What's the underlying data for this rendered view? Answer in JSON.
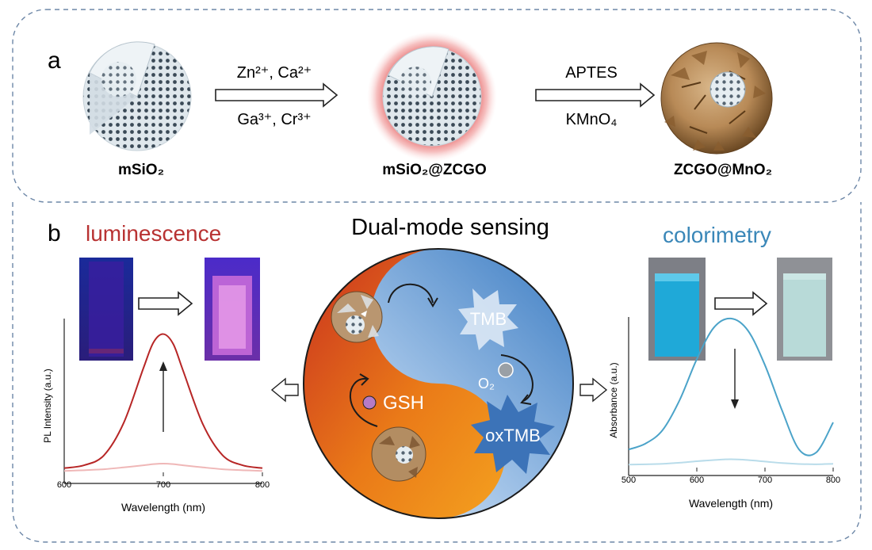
{
  "panel_a": {
    "label": "a",
    "step1_reagents_top": "Zn²⁺, Ca²⁺",
    "step1_reagents_bottom": "Ga³⁺, Cr³⁺",
    "step2_reagents_top": "APTES",
    "step2_reagents_bottom": "KMnO₄",
    "caption_1": "mSiO₂",
    "caption_2": "mSiO₂@ZCGO",
    "caption_3": "ZCGO@MnO₂"
  },
  "panel_b": {
    "label": "b",
    "luminescence_title": "luminescence",
    "center_title": "Dual-mode sensing",
    "colorimetry_title": "colorimetry",
    "tmb_label": "TMB",
    "o2_label": "O₂",
    "gsh_label": "GSH",
    "oxtmb_label": "oxTMB"
  },
  "colors": {
    "luminescence": "#b83232",
    "colorimetry": "#3a87b8",
    "frame_dash": "#6d87a7",
    "pl_high": "#b72626",
    "pl_low": "#efb7b7",
    "abs_high": "#4ba3c9",
    "abs_low": "#b9dcea"
  },
  "chart_data": [
    {
      "type": "line",
      "xlabel": "Wavelength (nm)",
      "ylabel": "PL Intensity (a.u.)",
      "xlim": [
        600,
        800
      ],
      "x_ticks": [
        600,
        700,
        800
      ],
      "series": [
        {
          "x": [
            600,
            620,
            640,
            660,
            680,
            690,
            700,
            710,
            720,
            740,
            760,
            780,
            800
          ],
          "y": [
            0.03,
            0.05,
            0.12,
            0.35,
            0.74,
            0.92,
            0.98,
            0.91,
            0.72,
            0.34,
            0.12,
            0.05,
            0.03
          ]
        },
        {
          "x": [
            600,
            620,
            640,
            660,
            680,
            690,
            700,
            710,
            720,
            740,
            760,
            780,
            800
          ],
          "y": [
            0.01,
            0.015,
            0.022,
            0.035,
            0.05,
            0.058,
            0.062,
            0.058,
            0.05,
            0.035,
            0.022,
            0.015,
            0.01
          ]
        }
      ]
    },
    {
      "type": "line",
      "xlabel": "Wavelength (nm)",
      "ylabel": "Absorbance (a.u.)",
      "xlim": [
        500,
        800
      ],
      "x_ticks": [
        500,
        600,
        700,
        800
      ],
      "series": [
        {
          "x": [
            500,
            525,
            550,
            575,
            600,
            625,
            650,
            675,
            700,
            725,
            750,
            775,
            800
          ],
          "y": [
            0.12,
            0.16,
            0.25,
            0.45,
            0.72,
            0.93,
            0.99,
            0.91,
            0.68,
            0.38,
            0.12,
            0.1,
            0.3
          ]
        },
        {
          "x": [
            500,
            525,
            550,
            575,
            600,
            625,
            650,
            675,
            700,
            725,
            750,
            775,
            800
          ],
          "y": [
            0.02,
            0.022,
            0.025,
            0.032,
            0.042,
            0.05,
            0.055,
            0.05,
            0.04,
            0.03,
            0.024,
            0.022,
            0.025
          ]
        }
      ]
    }
  ]
}
